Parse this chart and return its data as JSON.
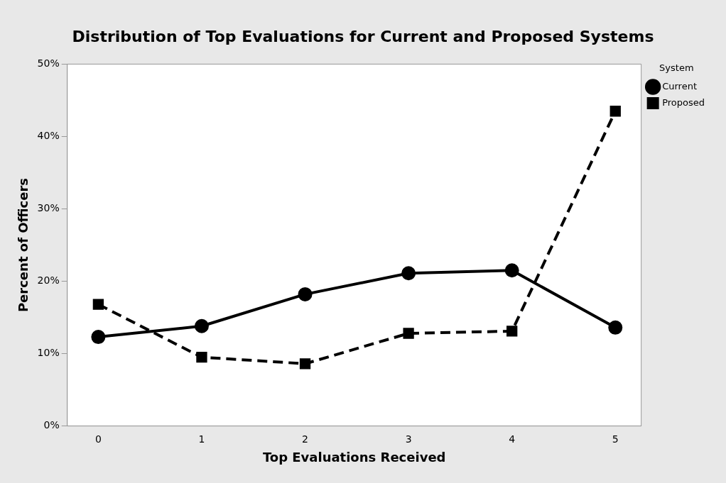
{
  "chart_data": {
    "type": "line",
    "title": "Distribution of Top Evaluations for Current and Proposed Systems",
    "xlabel": "Top Evaluations Received",
    "ylabel": "Percent of Officers",
    "legend_title": "System",
    "x": [
      0,
      1,
      2,
      3,
      4,
      5
    ],
    "xlim": [
      -0.3,
      5.25
    ],
    "xticks": [
      0,
      1,
      2,
      3,
      4,
      5
    ],
    "ylim": [
      0,
      50
    ],
    "yticks": [
      {
        "value": 0,
        "label": "0%"
      },
      {
        "value": 10,
        "label": "10%"
      },
      {
        "value": 20,
        "label": "20%"
      },
      {
        "value": 30,
        "label": "30%"
      },
      {
        "value": 40,
        "label": "40%"
      },
      {
        "value": 50,
        "label": "50%"
      }
    ],
    "grid": false,
    "legend": "top right",
    "series": [
      {
        "name": "Current",
        "color": "#000000",
        "marker": "circle",
        "line_style": "solid",
        "values": [
          12.3,
          13.8,
          18.2,
          21.1,
          21.5,
          13.6
        ]
      },
      {
        "name": "Proposed",
        "color": "#000000",
        "marker": "square",
        "line_style": "dashed",
        "values": [
          16.8,
          9.5,
          8.6,
          12.8,
          13.1,
          43.5
        ]
      }
    ]
  }
}
